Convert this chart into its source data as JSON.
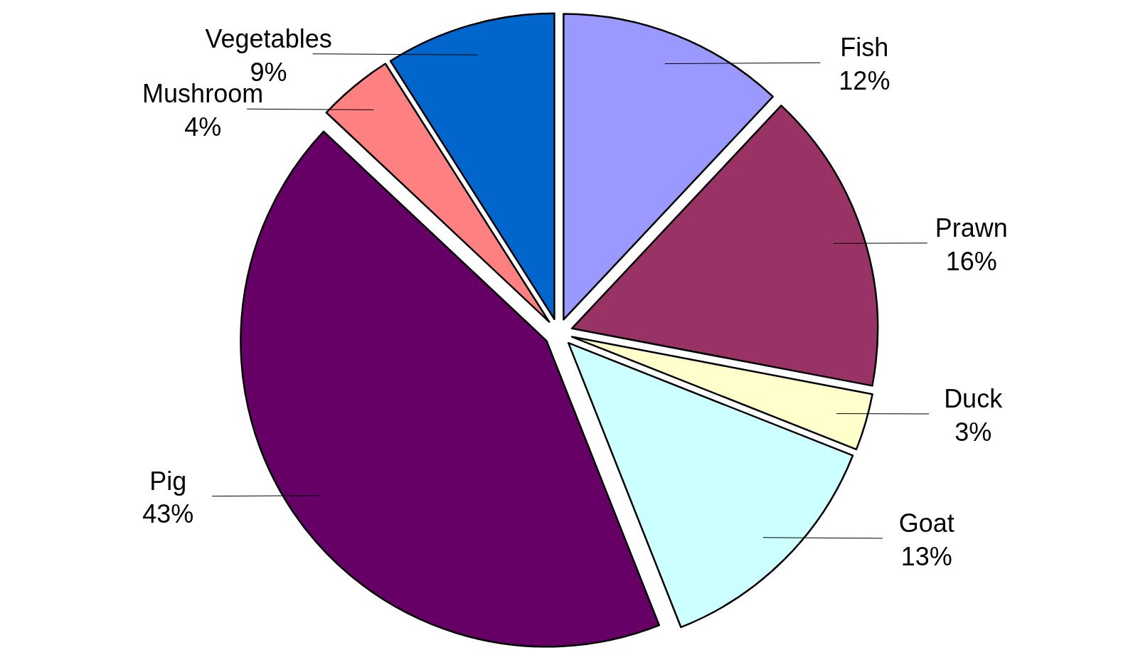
{
  "chart_data": {
    "type": "pie",
    "categories": [
      "Fish",
      "Prawn",
      "Duck",
      "Goat",
      "Pig",
      "Mushroom",
      "Vegetables"
    ],
    "values": [
      12,
      16,
      3,
      13,
      43,
      4,
      9
    ],
    "colors": [
      "#9999ff",
      "#993366",
      "#ffffcc",
      "#ccffff",
      "#660066",
      "#ff8080",
      "#0066cc"
    ],
    "value_labels": [
      "12%",
      "16%",
      "3%",
      "13%",
      "43%",
      "4%",
      "9%"
    ]
  }
}
